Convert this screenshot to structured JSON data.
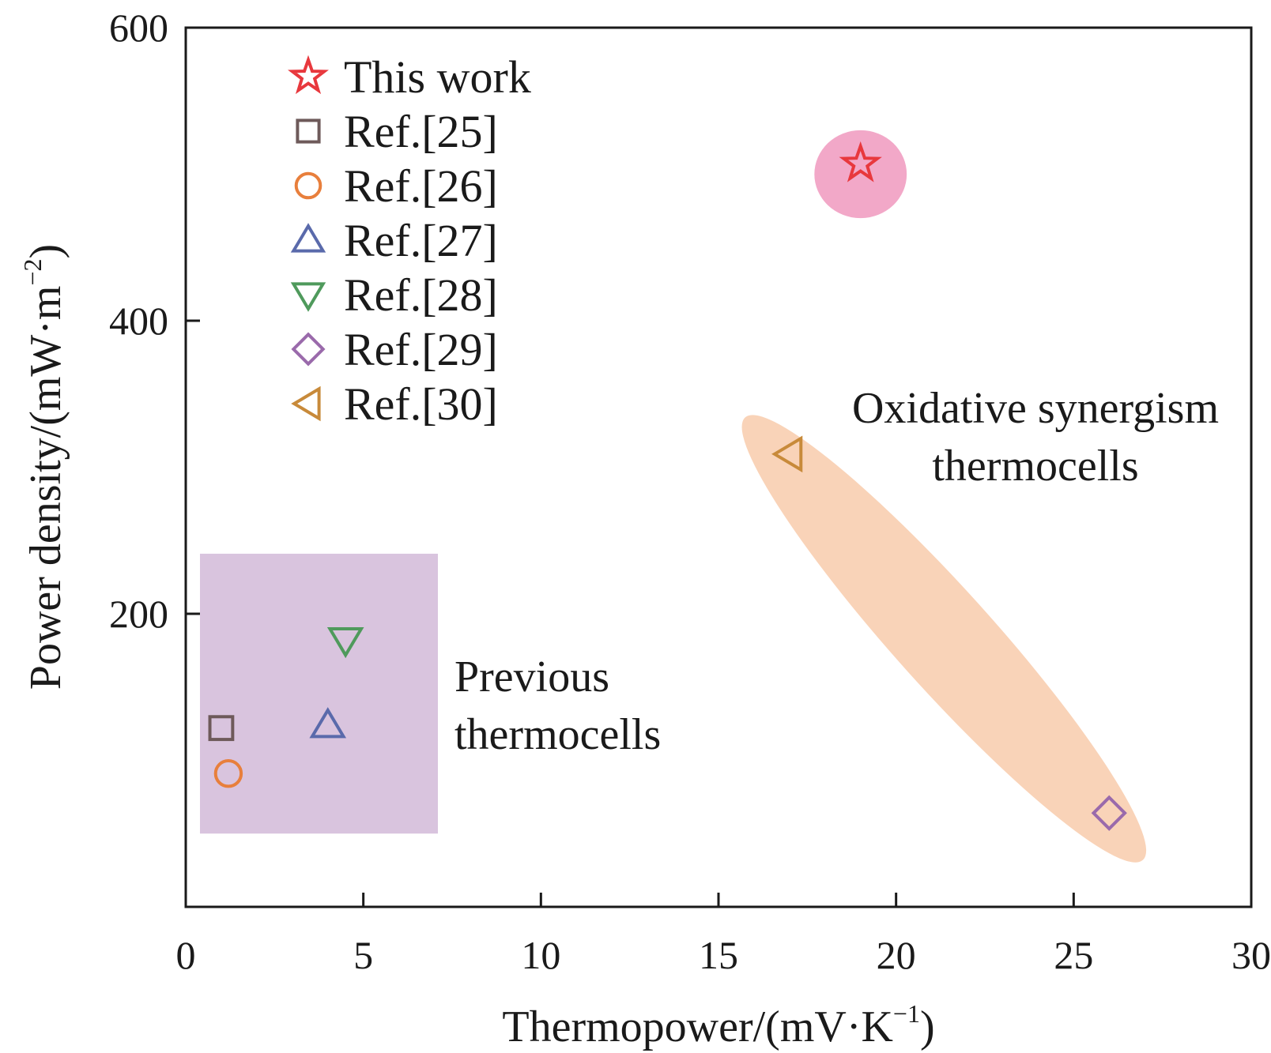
{
  "chart_data": {
    "type": "scatter",
    "xlabel": {
      "main": "Thermopower/(mV·K",
      "sup": "−1",
      "close": ")"
    },
    "ylabel": {
      "main": "Power density/(mW·m",
      "sup": "−2",
      "close": ")"
    },
    "xlim": [
      0,
      30
    ],
    "ylim": [
      0,
      600
    ],
    "xticks": [
      0,
      5,
      10,
      15,
      20,
      25,
      30
    ],
    "yticks": [
      200,
      400,
      600
    ],
    "legend_position": "top-left",
    "series": [
      {
        "name": "This work",
        "marker": "star",
        "color": "#e8383d",
        "points": [
          [
            19.0,
            507
          ]
        ]
      },
      {
        "name": "Ref.[25]",
        "marker": "square",
        "color": "#6e5a5a",
        "points": [
          [
            1.0,
            122
          ]
        ]
      },
      {
        "name": "Ref.[26]",
        "marker": "circle",
        "color": "#e87f3c",
        "points": [
          [
            1.2,
            91
          ]
        ]
      },
      {
        "name": "Ref.[27]",
        "marker": "triangle-up",
        "color": "#5a6aab",
        "points": [
          [
            4.0,
            124
          ]
        ]
      },
      {
        "name": "Ref.[28]",
        "marker": "triangle-down",
        "color": "#4f9a5c",
        "points": [
          [
            4.5,
            182
          ]
        ]
      },
      {
        "name": "Ref.[29]",
        "marker": "diamond",
        "color": "#9a6aab",
        "points": [
          [
            26.0,
            64
          ]
        ]
      },
      {
        "name": "Ref.[30]",
        "marker": "triangle-left",
        "color": "#c88a3a",
        "points": [
          [
            17.0,
            309
          ]
        ]
      }
    ],
    "annotations": [
      {
        "lines": [
          "Previous",
          "thermocells"
        ]
      },
      {
        "lines": [
          "Oxidative synergism",
          "thermocells"
        ]
      }
    ],
    "regions": [
      {
        "shape": "rect",
        "color": "#d9c4de",
        "x": [
          0.4,
          7.1
        ],
        "y": [
          50,
          241
        ]
      },
      {
        "shape": "ellipse",
        "color": "#f9d3b8",
        "from": [
          15.9,
          330
        ],
        "to": [
          26.8,
          36
        ]
      },
      {
        "shape": "circle",
        "color": "#f2a8c8",
        "center": [
          19.0,
          500
        ],
        "rx": 1.3,
        "ry": 30
      }
    ]
  }
}
